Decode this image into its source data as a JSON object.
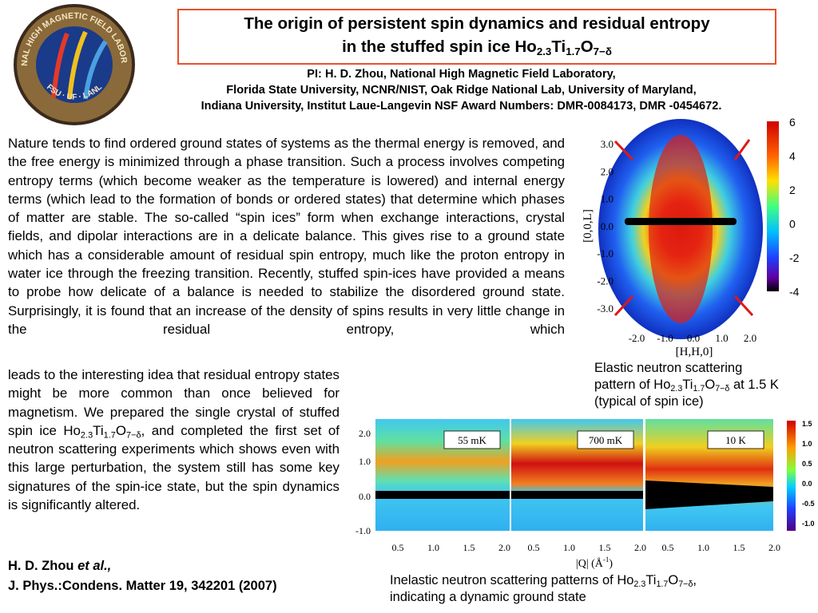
{
  "logo": {
    "ring_top": "NATIONAL HIGH MAGNETIC FIELD LABORATORY",
    "ring_bottom": "FSU · UF · LANL"
  },
  "title": [
    "The origin of persistent spin dynamics and residual entropy",
    "in the stuffed spin ice Ho",
    "2.3",
    "Ti",
    "1.7",
    "O",
    "7−δ"
  ],
  "credits": [
    "PI: H. D. Zhou, National High Magnetic Field Laboratory,",
    "Florida State University, NCNR/NIST, Oak Ridge National Lab, University of Maryland,",
    "Indiana University, Institut Laue-Langevin NSF Award Numbers: DMR-0084173, DMR -0454672."
  ],
  "body_top": "Nature tends to find ordered ground states of systems as the thermal energy is removed, and the free energy is minimized through a phase transition. Such a process involves competing entropy terms (which become weaker as the temperature is lowered) and internal energy terms (which lead to the formation of bonds or ordered states) that determine which phases of matter are stable. The so-called “spin ices” form when exchange interactions, crystal fields, and dipolar interactions are in a delicate balance. This gives rise to a ground state which has a considerable amount of residual spin entropy, much like the proton entropy in water ice through the freezing transition. Recently, stuffed spin-ices have provided a means to probe how delicate of a balance is needed to stabilize the disordered ground state. Surprisingly, it is found that an increase of the density of spins results in very little change in the residual entropy, which",
  "body_bottom": [
    "leads to the interesting idea that residual entropy states might be more common than once believed for magnetism. We prepared the single crystal of stuffed spin ice Ho",
    "2.3",
    "Ti",
    "1.7",
    "O",
    "7−δ",
    ", and completed the first set of neutron scattering experiments which shows even with this large perturbation, the system still has some key signatures of the spin-ice state, but the spin dynamics is significantly altered."
  ],
  "citation": [
    "H. D. Zhou ",
    "et al.,",
    "J. Phys.:Condens. Matter 19, 342201 (2007)"
  ],
  "figure1": {
    "yticks": [
      "3.0",
      "2.0",
      "1.0",
      "0.0",
      "-1.0",
      "-2.0",
      "-3.0"
    ],
    "xticks": [
      "-2.0",
      "-1.0",
      "0.0",
      "1.0",
      "2.0"
    ],
    "ylabel": "[0,0,L]",
    "xlabel": "[H,H,0]",
    "colorbar": [
      "6",
      "4",
      "2",
      "0",
      "-2",
      "-4"
    ],
    "caption": [
      "Elastic neutron scattering pattern of  Ho",
      "2.3",
      "Ti",
      "1.7",
      "O",
      "7−δ",
      " at 1.5 K (typical of spin ice)"
    ]
  },
  "figure2": {
    "panels": [
      "55 mK",
      "700 mK",
      "10 K"
    ],
    "yticks": [
      "2.0",
      "1.0",
      "0.0",
      "-1.0"
    ],
    "xticks": [
      "0.5",
      "1.0",
      "1.5",
      "2.0"
    ],
    "xlabel": [
      "|Q| (Å",
      "-1",
      ")"
    ],
    "colorbar": [
      "1.5",
      "1.0",
      "0.5",
      "0.0",
      "-0.5",
      "-1.0"
    ],
    "caption": [
      "Inelastic neutron scattering patterns of Ho",
      "2.3",
      "Ti",
      "1.7",
      "O",
      "7−δ",
      ",",
      "indicating a dynamic ground state"
    ]
  }
}
